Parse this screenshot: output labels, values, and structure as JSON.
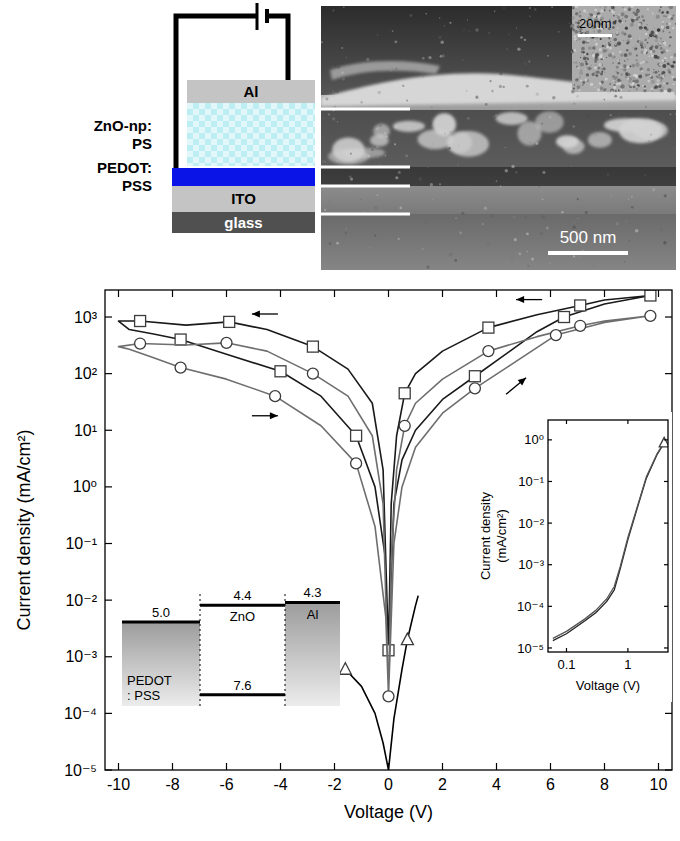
{
  "chart_data": [
    {
      "type": "line",
      "x_label": "Voltage (V)",
      "y_label": "Current density (mA/cm²)",
      "log": "y",
      "xlim": [
        -10.5,
        10.5
      ],
      "xticks": [
        -10,
        -8,
        -6,
        -4,
        -2,
        0,
        2,
        4,
        6,
        8,
        10
      ],
      "ylim": [
        1e-05,
        3000
      ],
      "yticks": [
        {
          "value": 1e-05,
          "label": "10⁻⁵"
        },
        {
          "value": 0.0001,
          "label": "10⁻⁴"
        },
        {
          "value": 0.001,
          "label": "10⁻³"
        },
        {
          "value": 0.01,
          "label": "10⁻²"
        },
        {
          "value": 0.1,
          "label": "10⁻¹"
        },
        {
          "value": 1,
          "label": "10⁰"
        },
        {
          "value": 10,
          "label": "10¹"
        },
        {
          "value": 100,
          "label": "10²"
        },
        {
          "value": 1000,
          "label": "10³"
        }
      ],
      "series": [
        {
          "color": "#1a1a1a",
          "marker": "none",
          "line_style": "solid",
          "x": [
            0,
            0.2,
            0.5,
            1,
            2,
            3.2,
            4.5,
            5.5,
            6.5,
            8,
            9.7,
            8,
            7.1,
            5.5,
            3.7,
            2,
            1,
            0.6,
            0.3,
            0.1,
            0,
            -0.2,
            -0.6,
            -1.5,
            -2.8,
            -4.5,
            -5.9,
            -7.5,
            -9.2,
            -10,
            -9.6,
            -8.7,
            -7.7,
            -6,
            -4,
            -2.5,
            -1.2,
            -0.5,
            -0.1,
            0
          ],
          "values": [
            0.0013,
            0.5,
            3,
            10,
            35,
            90,
            250,
            550,
            1000,
            1700,
            2400,
            2000,
            1600,
            1100,
            650,
            250,
            100,
            45,
            8,
            0.5,
            0.0013,
            2,
            30,
            120,
            300,
            600,
            820,
            720,
            850,
            850,
            600,
            500,
            400,
            220,
            110,
            40,
            8,
            1,
            0.05,
            0.0013
          ]
        },
        {
          "color": "#3c3c3c",
          "marker": "square",
          "line_style": "none",
          "x": [
            0,
            3.2,
            6.5,
            9.7,
            7.1,
            3.7,
            0.6,
            -2.8,
            -5.9,
            -9.2,
            -7.7,
            -4,
            -1.2
          ],
          "values": [
            0.0013,
            90,
            1000,
            2400,
            1600,
            650,
            45,
            300,
            820,
            850,
            400,
            110,
            8
          ]
        },
        {
          "color": "#6e6e6e",
          "marker": "none",
          "line_style": "solid",
          "x": [
            0,
            0.2,
            0.5,
            1,
            2,
            3.2,
            4.5,
            6.2,
            8,
            9.7,
            8,
            7.1,
            5.5,
            3.7,
            2,
            1,
            0.6,
            0.3,
            0.1,
            0,
            -0.2,
            -0.6,
            -1.5,
            -2.8,
            -4.5,
            -6,
            -7.5,
            -9.2,
            -10,
            -9.6,
            -8.7,
            -7.7,
            -6,
            -4.2,
            -2.5,
            -1.2,
            -0.5,
            -0.1,
            0
          ],
          "values": [
            0.0002,
            0.1,
            1,
            5,
            20,
            55,
            140,
            480,
            800,
            1050,
            850,
            700,
            450,
            250,
            80,
            30,
            12,
            2,
            0.05,
            0.0002,
            0.5,
            8,
            40,
            100,
            250,
            350,
            320,
            340,
            300,
            270,
            190,
            128,
            80,
            40,
            12,
            2.6,
            0.2,
            0.005,
            0.0002
          ]
        },
        {
          "color": "#3c3c3c",
          "marker": "circle",
          "line_style": "none",
          "x": [
            0,
            3.2,
            6.2,
            9.7,
            7.1,
            3.7,
            0.6,
            -2.8,
            -6,
            -9.2,
            -7.7,
            -4.2,
            -1.2
          ],
          "values": [
            0.0002,
            55,
            480,
            1050,
            700,
            250,
            12,
            100,
            350,
            340,
            128,
            40,
            2.6
          ]
        },
        {
          "color": "#000000",
          "marker": "none",
          "line_style": "solid",
          "x": [
            -1.6,
            -1,
            -0.5,
            -0.2,
            0,
            0.2,
            0.5,
            0.7,
            1,
            1.1
          ],
          "values": [
            0.0006,
            0.0003,
            0.0001,
            3e-05,
            1e-05,
            8e-05,
            0.0006,
            0.002,
            0.008,
            0.012
          ]
        },
        {
          "color": "#3c3c3c",
          "marker": "triangle",
          "line_style": "none",
          "x": [
            -1.6,
            0.7
          ],
          "values": [
            0.0006,
            0.002
          ]
        }
      ]
    },
    {
      "type": "line",
      "x_label": "Voltage (V)",
      "y_label": "Current density (mA/cm²)",
      "log": true,
      "xlim": [
        0.05,
        4.5
      ],
      "xticks": [
        0.1,
        1
      ],
      "ylim": [
        8e-06,
        3
      ],
      "yticks": [
        {
          "value": 1e-05,
          "label": "10⁻⁵"
        },
        {
          "value": 0.0001,
          "label": "10⁻⁴"
        },
        {
          "value": 0.001,
          "label": "10⁻³"
        },
        {
          "value": 0.01,
          "label": "10⁻²"
        },
        {
          "value": 0.1,
          "label": "10⁻¹"
        },
        {
          "value": 1,
          "label": "10⁰"
        }
      ],
      "series": [
        {
          "color": "#222222",
          "marker": "none",
          "line_style": "solid",
          "x": [
            0.06,
            0.1,
            0.2,
            0.3,
            0.45,
            0.6,
            0.75,
            1,
            1.5,
            2,
            3,
            3.9
          ],
          "values": [
            1.5e-05,
            2.2e-05,
            4.5e-05,
            7e-05,
            0.00013,
            0.00025,
            0.0008,
            0.004,
            0.03,
            0.12,
            0.45,
            0.85
          ]
        },
        {
          "color": "#555555",
          "marker": "none",
          "line_style": "solid",
          "x": [
            0.06,
            0.1,
            0.2,
            0.3,
            0.45,
            0.6,
            0.75,
            1,
            1.5,
            2,
            3,
            3.9
          ],
          "values": [
            1.7e-05,
            2.5e-05,
            5e-05,
            8e-05,
            0.00015,
            0.0003,
            0.0009,
            0.0045,
            0.032,
            0.13,
            0.47,
            0.87
          ]
        },
        {
          "color": "#3c3c3c",
          "marker": "triangle",
          "line_style": "none",
          "x": [
            3.9
          ],
          "values": [
            0.85
          ]
        }
      ]
    }
  ],
  "schematic": {
    "layers": [
      {
        "label": [
          "Al"
        ],
        "color": "#c4c4c4"
      },
      {
        "label": [
          "ZnO-np:",
          "PS"
        ],
        "color": "#bdeef3"
      },
      {
        "label": [
          "PEDOT:",
          "PSS"
        ],
        "color": "#0a14e6"
      },
      {
        "label": [
          "ITO"
        ],
        "color": "#c4c4c4"
      },
      {
        "label": [
          "glass"
        ],
        "color": "#505050"
      }
    ]
  },
  "sem_image": {
    "scale_bar": "500 nm",
    "inset_scale_bar": "20nm"
  },
  "energy_diagram": {
    "energy_range": [
      4.0,
      8.0
    ],
    "materials": [
      {
        "name": [
          "PEDOT",
          ": PSS"
        ],
        "levels": [
          {
            "value": 5.0,
            "label": "5.0"
          }
        ]
      },
      {
        "name": [
          "ZnO"
        ],
        "levels": [
          {
            "value": 4.4,
            "label": "4.4"
          },
          {
            "value": 7.6,
            "label": "7.6"
          }
        ]
      },
      {
        "name": [
          "Al"
        ],
        "levels": [
          {
            "value": 4.3,
            "label": "4.3"
          }
        ]
      }
    ]
  }
}
